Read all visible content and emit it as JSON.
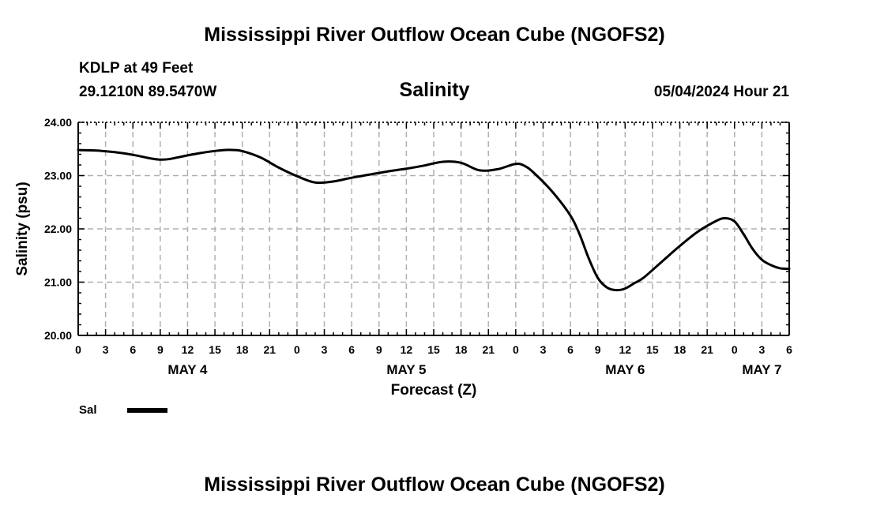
{
  "header": {
    "main_title": "Mississippi River Outflow Ocean Cube (NGOFS2)",
    "station": "KDLP at 49 Feet",
    "coords": "29.1210N  89.5470W",
    "datetime": "05/04/2024 Hour 21",
    "footer_title": "Mississippi River Outflow Ocean Cube (NGOFS2)"
  },
  "legend": {
    "label": "Sal"
  },
  "colors": {
    "line": "#000000",
    "grid": "#b0b0b0",
    "axis": "#000000"
  },
  "chart_data": {
    "type": "line",
    "title": "Salinity",
    "xlabel": "Forecast (Z)",
    "ylabel": "Salinity (psu)",
    "xlim": [
      0,
      78
    ],
    "ylim": [
      20,
      24
    ],
    "y_ticks": [
      "20.00",
      "21.00",
      "22.00",
      "23.00",
      "24.00"
    ],
    "x_tick_labels": [
      "0",
      "3",
      "6",
      "9",
      "12",
      "15",
      "18",
      "21",
      "0",
      "3",
      "6",
      "9",
      "12",
      "15",
      "18",
      "21",
      "0",
      "3",
      "6",
      "9",
      "12",
      "15",
      "18",
      "21",
      "0",
      "3",
      "6"
    ],
    "day_labels": [
      {
        "label": "MAY 4",
        "x": 12
      },
      {
        "label": "MAY 5",
        "x": 36
      },
      {
        "label": "MAY 6",
        "x": 60
      },
      {
        "label": "MAY 7",
        "x": 75
      }
    ],
    "grid": true,
    "series": [
      {
        "name": "Sal",
        "x": [
          0,
          2,
          4,
          6,
          8,
          9,
          10,
          12,
          14,
          16,
          17,
          18,
          20,
          22,
          24,
          26,
          28,
          30,
          32,
          34,
          36,
          38,
          40,
          42,
          44,
          46,
          48,
          49,
          50,
          52,
          54,
          55,
          56,
          57,
          58,
          59,
          60,
          61,
          62,
          64,
          66,
          68,
          70,
          71,
          72,
          73,
          74,
          75,
          76,
          77,
          78
        ],
        "y": [
          23.48,
          23.47,
          23.44,
          23.39,
          23.32,
          23.3,
          23.31,
          23.38,
          23.44,
          23.48,
          23.48,
          23.46,
          23.34,
          23.15,
          22.99,
          22.87,
          22.89,
          22.96,
          23.02,
          23.08,
          23.13,
          23.19,
          23.26,
          23.24,
          23.1,
          23.12,
          23.22,
          23.18,
          23.05,
          22.7,
          22.25,
          21.9,
          21.45,
          21.08,
          20.9,
          20.85,
          20.88,
          20.98,
          21.08,
          21.38,
          21.68,
          21.95,
          22.15,
          22.2,
          22.14,
          21.9,
          21.62,
          21.42,
          21.32,
          21.26,
          21.25
        ]
      }
    ]
  }
}
